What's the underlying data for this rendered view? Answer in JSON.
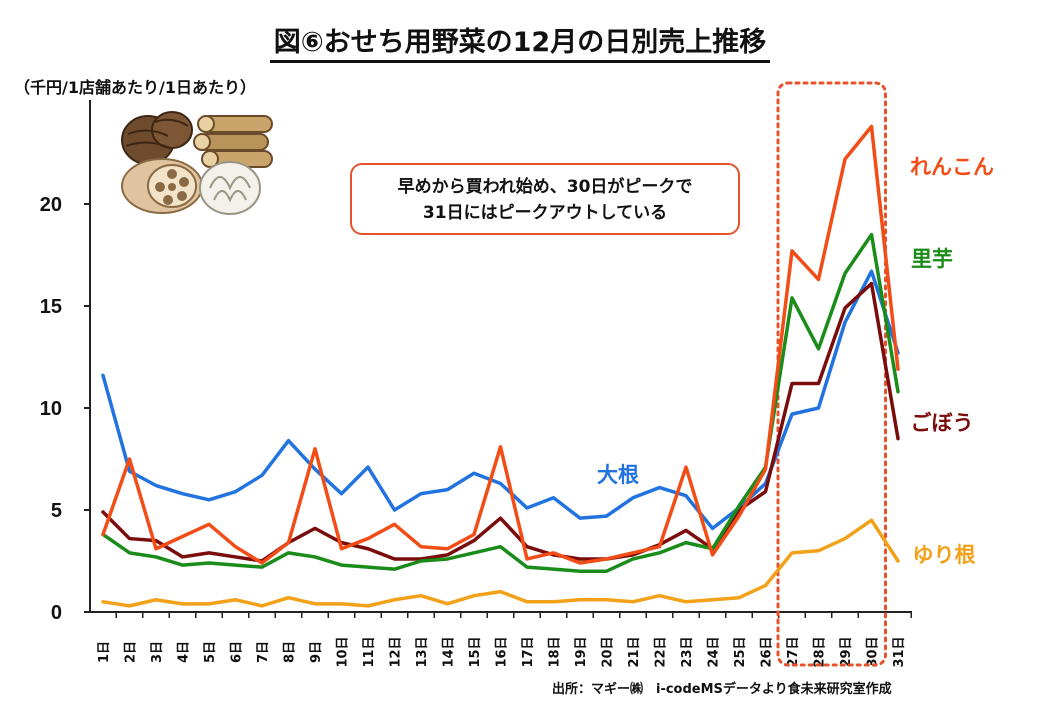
{
  "title": "図⑥おせち用野菜の12月の日別売上推移",
  "unit_label": "（千円/1店舗あたり/1日あたり）",
  "callout": {
    "line1": "早めから買われ始め、30日がピークで",
    "line2": "31日にはピークアウトしている"
  },
  "source": "出所：マギー㈱　i-codeMSデータより食未来研究室作成",
  "colors": {
    "renkon": "#f24d16",
    "satoimo": "#1a8c1a",
    "gobou": "#7a0c0c",
    "daikon": "#2173e0",
    "yurine": "#f4a11a",
    "highlight": "#e5532d"
  },
  "chart_data": {
    "type": "line",
    "title": "図⑥おせち用野菜の12月の日別売上推移",
    "xlabel": "",
    "ylabel": "（千円/1店舗あたり/1日あたり）",
    "ylim": [
      0,
      25
    ],
    "yticks": [
      0,
      5,
      10,
      15,
      20
    ],
    "grid": false,
    "highlight_range": [
      "27日",
      "30日"
    ],
    "categories": [
      "1日",
      "2日",
      "3日",
      "4日",
      "5日",
      "6日",
      "7日",
      "8日",
      "9日",
      "10日",
      "11日",
      "12日",
      "13日",
      "14日",
      "15日",
      "16日",
      "17日",
      "18日",
      "19日",
      "20日",
      "21日",
      "22日",
      "23日",
      "24日",
      "25日",
      "26日",
      "27日",
      "28日",
      "29日",
      "30日",
      "31日"
    ],
    "series": [
      {
        "name": "大根",
        "key": "daikon",
        "values": [
          11.6,
          6.9,
          6.2,
          5.8,
          5.5,
          5.9,
          6.7,
          8.4,
          7.0,
          5.8,
          7.1,
          5.0,
          5.8,
          6.0,
          6.8,
          6.3,
          5.1,
          5.6,
          4.6,
          4.7,
          5.6,
          6.1,
          5.7,
          4.1,
          5.1,
          6.3,
          9.7,
          10.0,
          14.2,
          16.7,
          12.7
        ]
      },
      {
        "name": "れんこん",
        "key": "renkon",
        "values": [
          3.8,
          7.5,
          3.1,
          3.7,
          4.3,
          3.2,
          2.4,
          3.4,
          8.0,
          3.1,
          3.6,
          4.3,
          3.2,
          3.1,
          3.8,
          8.1,
          2.6,
          2.9,
          2.4,
          2.6,
          2.9,
          3.2,
          7.1,
          2.8,
          4.7,
          7.0,
          17.7,
          16.3,
          22.2,
          23.8,
          11.9
        ]
      },
      {
        "name": "里芋",
        "key": "satoimo",
        "values": [
          3.8,
          2.9,
          2.7,
          2.3,
          2.4,
          2.3,
          2.2,
          2.9,
          2.7,
          2.3,
          2.2,
          2.1,
          2.5,
          2.6,
          2.9,
          3.2,
          2.2,
          2.1,
          2.0,
          2.0,
          2.6,
          2.9,
          3.4,
          3.1,
          5.2,
          7.1,
          15.4,
          12.9,
          16.6,
          18.5,
          10.8
        ]
      },
      {
        "name": "ごぼう",
        "key": "gobou",
        "values": [
          4.9,
          3.6,
          3.5,
          2.7,
          2.9,
          2.7,
          2.5,
          3.4,
          4.1,
          3.4,
          3.1,
          2.6,
          2.6,
          2.8,
          3.5,
          4.6,
          3.2,
          2.8,
          2.6,
          2.6,
          2.8,
          3.3,
          4.0,
          3.1,
          5.0,
          5.9,
          11.2,
          11.2,
          14.9,
          16.1,
          8.5
        ]
      },
      {
        "name": "ゆり根",
        "key": "yurine",
        "values": [
          0.5,
          0.3,
          0.6,
          0.4,
          0.4,
          0.6,
          0.3,
          0.7,
          0.4,
          0.4,
          0.3,
          0.6,
          0.8,
          0.4,
          0.8,
          1.0,
          0.5,
          0.5,
          0.6,
          0.6,
          0.5,
          0.8,
          0.5,
          0.6,
          0.7,
          1.3,
          2.9,
          3.0,
          3.6,
          4.5,
          2.5
        ]
      }
    ]
  }
}
